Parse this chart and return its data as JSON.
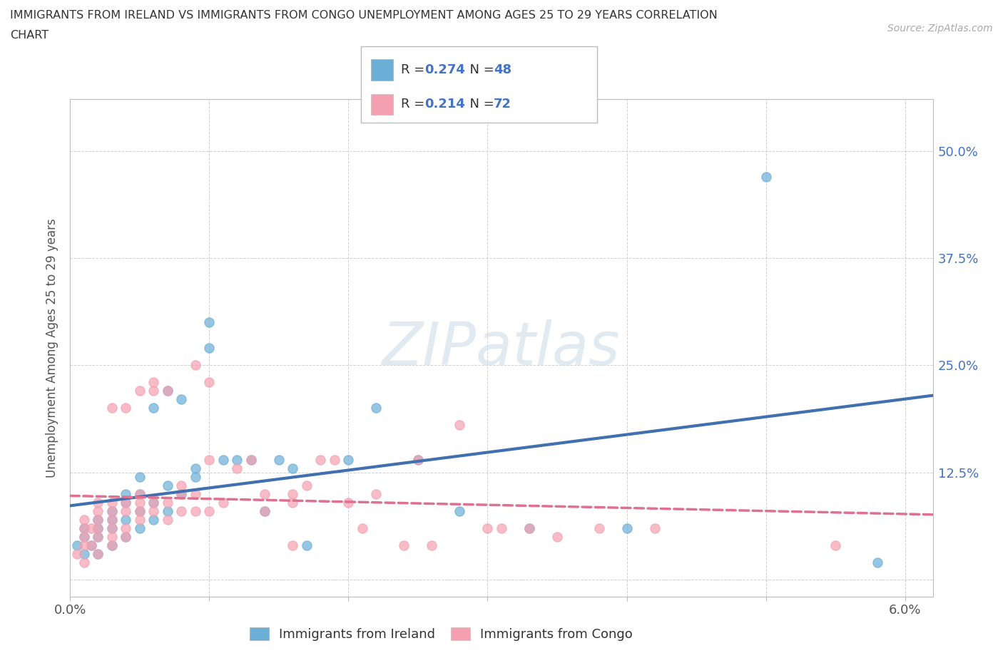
{
  "title_line1": "IMMIGRANTS FROM IRELAND VS IMMIGRANTS FROM CONGO UNEMPLOYMENT AMONG AGES 25 TO 29 YEARS CORRELATION",
  "title_line2": "CHART",
  "source": "Source: ZipAtlas.com",
  "ylabel": "Unemployment Among Ages 25 to 29 years",
  "xlim": [
    0.0,
    0.062
  ],
  "ylim": [
    -0.02,
    0.56
  ],
  "xticks": [
    0.0,
    0.01,
    0.02,
    0.03,
    0.04,
    0.05,
    0.06
  ],
  "xticklabels": [
    "0.0%",
    "",
    "",
    "",
    "",
    "",
    "6.0%"
  ],
  "yticks": [
    0.0,
    0.125,
    0.25,
    0.375,
    0.5
  ],
  "yticklabels": [
    "",
    "12.5%",
    "25.0%",
    "37.5%",
    "50.0%"
  ],
  "ireland_color": "#6baed6",
  "congo_color": "#f4a0b0",
  "ireland_line_color": "#4070b0",
  "congo_line_color": "#e07090",
  "ireland_R": 0.274,
  "ireland_N": 48,
  "congo_R": 0.214,
  "congo_N": 72,
  "watermark": "ZIPatlas",
  "legend_text_color": "#4472c4",
  "ireland_scatter": [
    [
      0.0005,
      0.04
    ],
    [
      0.001,
      0.03
    ],
    [
      0.001,
      0.05
    ],
    [
      0.001,
      0.06
    ],
    [
      0.0015,
      0.04
    ],
    [
      0.002,
      0.03
    ],
    [
      0.002,
      0.05
    ],
    [
      0.002,
      0.06
    ],
    [
      0.002,
      0.07
    ],
    [
      0.003,
      0.04
    ],
    [
      0.003,
      0.06
    ],
    [
      0.003,
      0.07
    ],
    [
      0.003,
      0.08
    ],
    [
      0.004,
      0.05
    ],
    [
      0.004,
      0.07
    ],
    [
      0.004,
      0.09
    ],
    [
      0.004,
      0.1
    ],
    [
      0.005,
      0.06
    ],
    [
      0.005,
      0.08
    ],
    [
      0.005,
      0.1
    ],
    [
      0.005,
      0.12
    ],
    [
      0.006,
      0.07
    ],
    [
      0.006,
      0.09
    ],
    [
      0.006,
      0.2
    ],
    [
      0.007,
      0.08
    ],
    [
      0.007,
      0.11
    ],
    [
      0.007,
      0.22
    ],
    [
      0.008,
      0.1
    ],
    [
      0.008,
      0.21
    ],
    [
      0.009,
      0.12
    ],
    [
      0.009,
      0.13
    ],
    [
      0.01,
      0.27
    ],
    [
      0.01,
      0.3
    ],
    [
      0.011,
      0.14
    ],
    [
      0.012,
      0.14
    ],
    [
      0.013,
      0.14
    ],
    [
      0.014,
      0.08
    ],
    [
      0.015,
      0.14
    ],
    [
      0.016,
      0.13
    ],
    [
      0.017,
      0.04
    ],
    [
      0.02,
      0.14
    ],
    [
      0.022,
      0.2
    ],
    [
      0.025,
      0.14
    ],
    [
      0.028,
      0.08
    ],
    [
      0.033,
      0.06
    ],
    [
      0.04,
      0.06
    ],
    [
      0.05,
      0.47
    ],
    [
      0.058,
      0.02
    ]
  ],
  "congo_scatter": [
    [
      0.0005,
      0.03
    ],
    [
      0.001,
      0.02
    ],
    [
      0.001,
      0.04
    ],
    [
      0.001,
      0.05
    ],
    [
      0.001,
      0.06
    ],
    [
      0.001,
      0.07
    ],
    [
      0.0015,
      0.04
    ],
    [
      0.0015,
      0.06
    ],
    [
      0.002,
      0.03
    ],
    [
      0.002,
      0.05
    ],
    [
      0.002,
      0.06
    ],
    [
      0.002,
      0.07
    ],
    [
      0.002,
      0.08
    ],
    [
      0.002,
      0.09
    ],
    [
      0.003,
      0.04
    ],
    [
      0.003,
      0.05
    ],
    [
      0.003,
      0.06
    ],
    [
      0.003,
      0.07
    ],
    [
      0.003,
      0.08
    ],
    [
      0.003,
      0.09
    ],
    [
      0.003,
      0.2
    ],
    [
      0.004,
      0.05
    ],
    [
      0.004,
      0.06
    ],
    [
      0.004,
      0.08
    ],
    [
      0.004,
      0.09
    ],
    [
      0.004,
      0.2
    ],
    [
      0.005,
      0.07
    ],
    [
      0.005,
      0.08
    ],
    [
      0.005,
      0.09
    ],
    [
      0.005,
      0.1
    ],
    [
      0.005,
      0.22
    ],
    [
      0.006,
      0.08
    ],
    [
      0.006,
      0.09
    ],
    [
      0.006,
      0.22
    ],
    [
      0.006,
      0.23
    ],
    [
      0.007,
      0.07
    ],
    [
      0.007,
      0.09
    ],
    [
      0.007,
      0.22
    ],
    [
      0.008,
      0.08
    ],
    [
      0.008,
      0.1
    ],
    [
      0.008,
      0.11
    ],
    [
      0.009,
      0.08
    ],
    [
      0.009,
      0.1
    ],
    [
      0.009,
      0.25
    ],
    [
      0.01,
      0.08
    ],
    [
      0.01,
      0.14
    ],
    [
      0.01,
      0.23
    ],
    [
      0.011,
      0.09
    ],
    [
      0.012,
      0.13
    ],
    [
      0.013,
      0.14
    ],
    [
      0.014,
      0.08
    ],
    [
      0.014,
      0.1
    ],
    [
      0.016,
      0.04
    ],
    [
      0.016,
      0.09
    ],
    [
      0.016,
      0.1
    ],
    [
      0.017,
      0.11
    ],
    [
      0.018,
      0.14
    ],
    [
      0.019,
      0.14
    ],
    [
      0.02,
      0.09
    ],
    [
      0.021,
      0.06
    ],
    [
      0.022,
      0.1
    ],
    [
      0.024,
      0.04
    ],
    [
      0.025,
      0.14
    ],
    [
      0.026,
      0.04
    ],
    [
      0.028,
      0.18
    ],
    [
      0.03,
      0.06
    ],
    [
      0.031,
      0.06
    ],
    [
      0.033,
      0.06
    ],
    [
      0.035,
      0.05
    ],
    [
      0.038,
      0.06
    ],
    [
      0.042,
      0.06
    ],
    [
      0.055,
      0.04
    ]
  ]
}
